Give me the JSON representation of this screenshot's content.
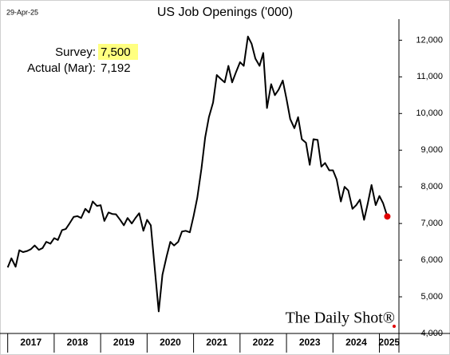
{
  "chart_data": {
    "type": "line",
    "date": "29-Apr-25",
    "title": "US Job Openings ('000)",
    "annotations": {
      "survey_label": "Survey:",
      "survey_value": "7,500",
      "actual_label": "Actual (Mar):",
      "actual_value": "7,192",
      "highlight_color": "#ffff80"
    },
    "watermark": "The Daily Shot®",
    "last_marker_color": "#e00000",
    "x": [
      2017.0,
      2017.08,
      2017.17,
      2017.25,
      2017.33,
      2017.42,
      2017.5,
      2017.58,
      2017.67,
      2017.75,
      2017.83,
      2017.92,
      2018.0,
      2018.08,
      2018.17,
      2018.25,
      2018.33,
      2018.42,
      2018.5,
      2018.58,
      2018.67,
      2018.75,
      2018.83,
      2018.92,
      2019.0,
      2019.08,
      2019.17,
      2019.25,
      2019.33,
      2019.42,
      2019.5,
      2019.58,
      2019.67,
      2019.75,
      2019.83,
      2019.92,
      2020.0,
      2020.08,
      2020.17,
      2020.25,
      2020.33,
      2020.42,
      2020.5,
      2020.58,
      2020.67,
      2020.75,
      2020.83,
      2020.92,
      2021.0,
      2021.08,
      2021.17,
      2021.25,
      2021.33,
      2021.42,
      2021.5,
      2021.58,
      2021.67,
      2021.75,
      2021.83,
      2021.92,
      2022.0,
      2022.08,
      2022.17,
      2022.25,
      2022.33,
      2022.42,
      2022.5,
      2022.58,
      2022.67,
      2022.75,
      2022.83,
      2022.92,
      2023.0,
      2023.08,
      2023.17,
      2023.25,
      2023.33,
      2023.42,
      2023.5,
      2023.58,
      2023.67,
      2023.75,
      2023.83,
      2023.92,
      2024.0,
      2024.08,
      2024.17,
      2024.25,
      2024.33,
      2024.42,
      2024.5,
      2024.58,
      2024.67,
      2024.75,
      2024.83,
      2024.92,
      2025.0,
      2025.08,
      2025.17
    ],
    "series": [
      {
        "name": "Job Openings",
        "color": "#000000",
        "values": [
          5800,
          6050,
          5820,
          6270,
          6220,
          6250,
          6300,
          6400,
          6280,
          6330,
          6500,
          6450,
          6600,
          6550,
          6820,
          6850,
          7000,
          7180,
          7200,
          7150,
          7400,
          7300,
          7600,
          7480,
          7500,
          7070,
          7300,
          7260,
          7250,
          7100,
          6950,
          7150,
          7000,
          7150,
          7280,
          6800,
          7100,
          6950,
          5700,
          4600,
          5600,
          6100,
          6500,
          6400,
          6500,
          6780,
          6800,
          6760,
          7200,
          7700,
          8500,
          9350,
          9900,
          10300,
          11050,
          10950,
          10850,
          11300,
          10850,
          11150,
          11400,
          11300,
          12100,
          11900,
          11500,
          11300,
          11650,
          10150,
          10800,
          10500,
          10650,
          10900,
          10400,
          9850,
          9600,
          9900,
          9300,
          9200,
          8600,
          9300,
          9280,
          8550,
          8650,
          8450,
          8450,
          8200,
          7600,
          8000,
          7900,
          7400,
          7500,
          7650,
          7100,
          7550,
          8050,
          7500,
          7750,
          7550,
          7192
        ]
      }
    ],
    "xlim": [
      2016.92,
      2025.42
    ],
    "xticks": [
      2017,
      2018,
      2019,
      2020,
      2021,
      2022,
      2023,
      2024,
      2025
    ],
    "ylim": [
      4000,
      12400
    ],
    "yticks": [
      {
        "value": 4000,
        "label": "4,000"
      },
      {
        "value": 5000,
        "label": "5,000"
      },
      {
        "value": 6000,
        "label": "6,000"
      },
      {
        "value": 7000,
        "label": "7,000"
      },
      {
        "value": 8000,
        "label": "8,000"
      },
      {
        "value": 9000,
        "label": "9,000"
      },
      {
        "value": 10000,
        "label": "10,000"
      },
      {
        "value": 11000,
        "label": "11,000"
      },
      {
        "value": 12000,
        "label": "12,000"
      }
    ],
    "y_axis_side": "right"
  }
}
